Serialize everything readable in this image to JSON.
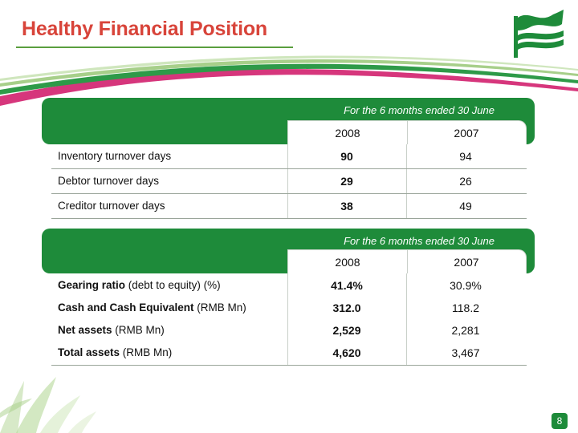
{
  "slide": {
    "title": "Healthy Financial Position",
    "page_number": "8"
  },
  "table1": {
    "period": "For the 6 months ended 30 June",
    "years": [
      "2008",
      "2007"
    ],
    "rows": [
      {
        "label": "Inventory turnover days",
        "v2008": "90",
        "v2007": "94"
      },
      {
        "label": "Debtor turnover days",
        "v2008": "29",
        "v2007": "26"
      },
      {
        "label": "Creditor turnover days",
        "v2008": "38",
        "v2007": "49"
      }
    ]
  },
  "table2": {
    "period": "For the 6 months ended 30 June",
    "years": [
      "2008",
      "2007"
    ],
    "rows": [
      {
        "label_bold": "Gearing ratio",
        "label_rest": " (debt to equity) (%)",
        "v2008": "41.4%",
        "v2007": "30.9%"
      },
      {
        "label_bold": "Cash and Cash Equivalent",
        "label_rest": " (RMB Mn)",
        "v2008": "312.0",
        "v2007": "118.2"
      },
      {
        "label_bold": "Net assets",
        "label_rest": " (RMB Mn)",
        "v2008": "2,529",
        "v2007": "2,281"
      },
      {
        "label_bold": "Total assets",
        "label_rest": " (RMB Mn)",
        "v2008": "4,620",
        "v2007": "3,467"
      }
    ]
  },
  "colors": {
    "title_red": "#d8443a",
    "brand_green": "#1e8b3a",
    "swoosh_pink": "#d6367c"
  },
  "icons": {
    "logo": "flag-waves-logo-icon"
  }
}
